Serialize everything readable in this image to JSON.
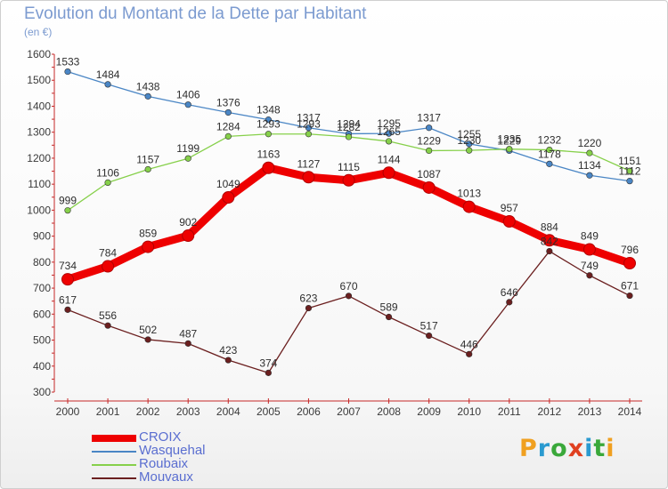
{
  "chart_data": {
    "type": "line",
    "title": "Evolution du Montant de la Dette par Habitant",
    "subtitle": "(en €)",
    "x": [
      "2000",
      "2001",
      "2002",
      "2003",
      "2004",
      "2005",
      "2006",
      "2007",
      "2008",
      "2009",
      "2010",
      "2011",
      "2012",
      "2013",
      "2014"
    ],
    "ylim": [
      300,
      1600
    ],
    "yticks": [
      300,
      400,
      500,
      600,
      700,
      800,
      900,
      1000,
      1100,
      1200,
      1300,
      1400,
      1500,
      1600
    ],
    "grid": false,
    "legend_position": "bottom-left",
    "series": [
      {
        "name": "Wasquehal",
        "color": "#4a86c5",
        "values": [
          1533,
          1484,
          1438,
          1406,
          1376,
          1348,
          1317,
          1294,
          1295,
          1317,
          1255,
          1229,
          1178,
          1134,
          1112
        ],
        "labels": [
          "1533",
          "1484",
          "1438",
          "1406",
          "1376",
          "1348",
          "1317",
          "1294",
          "1295",
          "1317",
          "1255",
          "1229",
          "1178",
          "1134",
          "1112"
        ]
      },
      {
        "name": "Roubaix",
        "color": "#86d04a",
        "values": [
          999,
          1106,
          1157,
          1199,
          1284,
          1293,
          1293,
          1282,
          1265,
          1229,
          1230,
          1235,
          1232,
          1220,
          1151
        ],
        "labels": [
          "999",
          "1106",
          "1157",
          "1199",
          "1284",
          "1293",
          "1293",
          "1282",
          "1265",
          "1229",
          "1230",
          "1235",
          "1232",
          "1220",
          "1151"
        ]
      },
      {
        "name": "Mouvaux",
        "color": "#6b1f1f",
        "values": [
          617,
          556,
          502,
          487,
          423,
          374,
          623,
          670,
          589,
          517,
          446,
          646,
          842,
          749,
          671
        ],
        "labels": [
          "617",
          "556",
          "502",
          "487",
          "423",
          "374",
          "623",
          "670",
          "589",
          "517",
          "446",
          "646",
          "842",
          "749",
          "671"
        ]
      },
      {
        "name": "CROIX",
        "color": "#ee0000",
        "values": [
          734,
          784,
          859,
          902,
          1049,
          1163,
          1127,
          1115,
          1144,
          1087,
          1013,
          957,
          884,
          849,
          796
        ],
        "labels": [
          "734",
          "784",
          "859",
          "902",
          "1049",
          "1163",
          "1127",
          "1115",
          "1144",
          "1087",
          "1013",
          "957",
          "884",
          "849",
          "796"
        ]
      }
    ]
  },
  "legend": [
    {
      "label": "CROIX",
      "color": "#ee0000"
    },
    {
      "label": "Wasquehal",
      "color": "#4a86c5"
    },
    {
      "label": "Roubaix",
      "color": "#86d04a"
    },
    {
      "label": "Mouvaux",
      "color": "#6b1f1f"
    }
  ],
  "logo": {
    "letters": [
      "P",
      "r",
      "o",
      "x",
      "i",
      "t",
      "i"
    ],
    "colors": [
      "#f0a020",
      "#2a9ad0",
      "#3aa83a",
      "#e04020",
      "#2a9ad0",
      "#3aa83a",
      "#f0a020"
    ]
  }
}
